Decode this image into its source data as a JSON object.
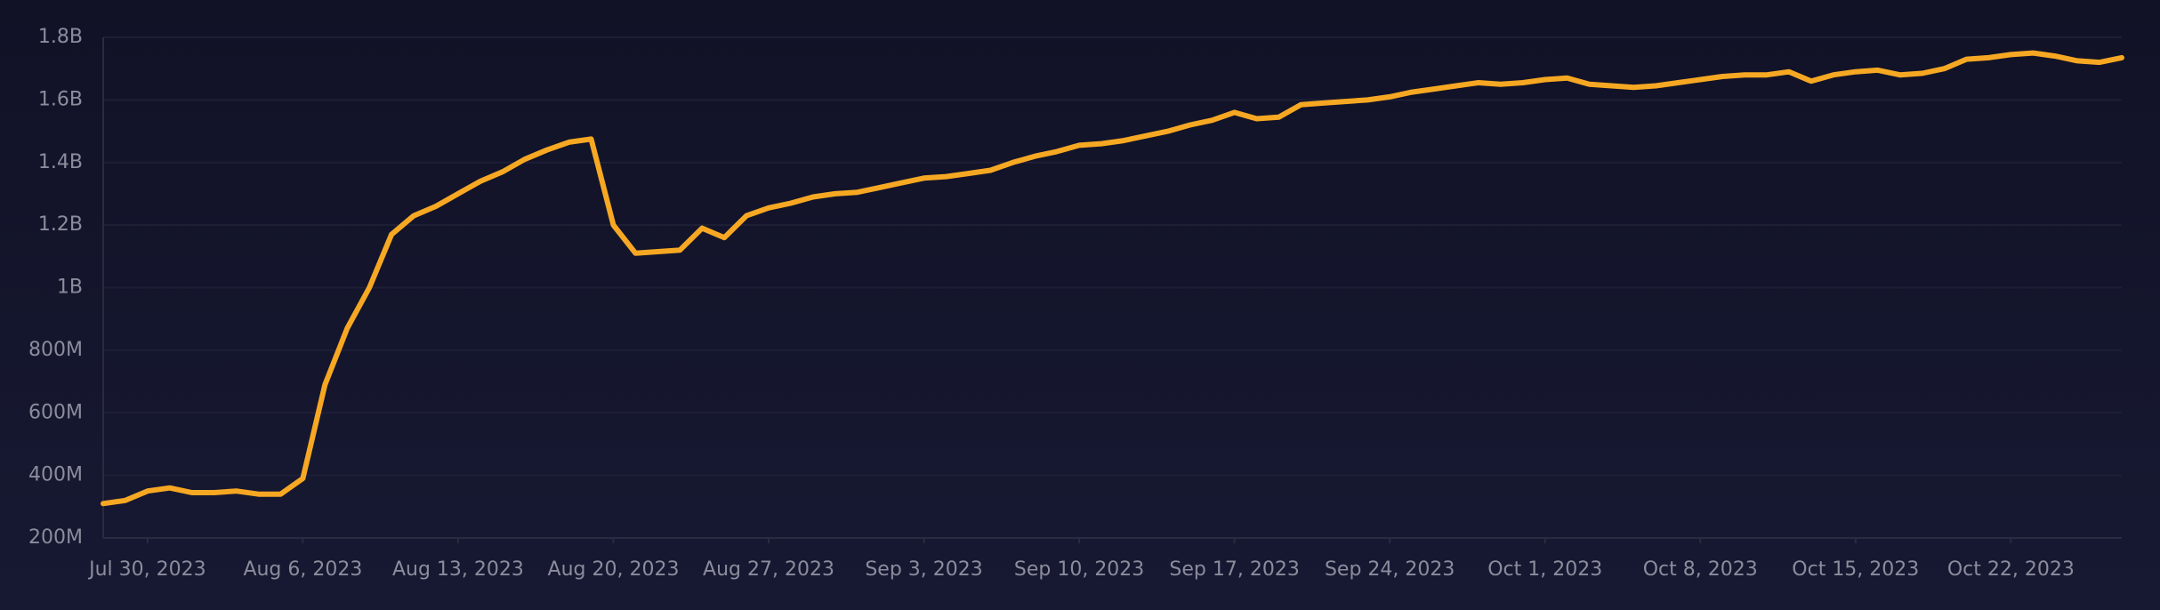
{
  "chart_data": {
    "type": "line",
    "x": [
      "2023-07-28",
      "2023-07-29",
      "2023-07-30",
      "2023-07-31",
      "2023-08-01",
      "2023-08-02",
      "2023-08-03",
      "2023-08-04",
      "2023-08-05",
      "2023-08-06",
      "2023-08-07",
      "2023-08-08",
      "2023-08-09",
      "2023-08-10",
      "2023-08-11",
      "2023-08-12",
      "2023-08-13",
      "2023-08-14",
      "2023-08-15",
      "2023-08-16",
      "2023-08-17",
      "2023-08-18",
      "2023-08-19",
      "2023-08-20",
      "2023-08-21",
      "2023-08-22",
      "2023-08-23",
      "2023-08-24",
      "2023-08-25",
      "2023-08-26",
      "2023-08-27",
      "2023-08-28",
      "2023-08-29",
      "2023-08-30",
      "2023-08-31",
      "2023-09-01",
      "2023-09-02",
      "2023-09-03",
      "2023-09-04",
      "2023-09-05",
      "2023-09-06",
      "2023-09-07",
      "2023-09-08",
      "2023-09-09",
      "2023-09-10",
      "2023-09-11",
      "2023-09-12",
      "2023-09-13",
      "2023-09-14",
      "2023-09-15",
      "2023-09-16",
      "2023-09-17",
      "2023-09-18",
      "2023-09-19",
      "2023-09-20",
      "2023-09-21",
      "2023-09-22",
      "2023-09-23",
      "2023-09-24",
      "2023-09-25",
      "2023-09-26",
      "2023-09-27",
      "2023-09-28",
      "2023-09-29",
      "2023-09-30",
      "2023-10-01",
      "2023-10-02",
      "2023-10-03",
      "2023-10-04",
      "2023-10-05",
      "2023-10-06",
      "2023-10-07",
      "2023-10-08",
      "2023-10-09",
      "2023-10-10",
      "2023-10-11",
      "2023-10-12",
      "2023-10-13",
      "2023-10-14",
      "2023-10-15",
      "2023-10-16",
      "2023-10-17",
      "2023-10-18",
      "2023-10-19",
      "2023-10-20",
      "2023-10-21",
      "2023-10-22",
      "2023-10-23",
      "2023-10-24",
      "2023-10-25",
      "2023-10-26",
      "2023-10-27"
    ],
    "series": [
      {
        "color": "#f7a823",
        "values": [
          310000000,
          320000000,
          350000000,
          360000000,
          345000000,
          345000000,
          350000000,
          340000000,
          340000000,
          390000000,
          690000000,
          870000000,
          1000000000,
          1170000000,
          1230000000,
          1260000000,
          1300000000,
          1340000000,
          1370000000,
          1410000000,
          1440000000,
          1465000000,
          1475000000,
          1200000000,
          1110000000,
          1115000000,
          1120000000,
          1190000000,
          1160000000,
          1230000000,
          1255000000,
          1270000000,
          1290000000,
          1300000000,
          1305000000,
          1320000000,
          1335000000,
          1350000000,
          1355000000,
          1365000000,
          1375000000,
          1400000000,
          1420000000,
          1435000000,
          1455000000,
          1460000000,
          1470000000,
          1485000000,
          1500000000,
          1520000000,
          1535000000,
          1560000000,
          1540000000,
          1545000000,
          1585000000,
          1590000000,
          1595000000,
          1600000000,
          1610000000,
          1625000000,
          1635000000,
          1645000000,
          1655000000,
          1650000000,
          1655000000,
          1665000000,
          1670000000,
          1650000000,
          1645000000,
          1640000000,
          1645000000,
          1655000000,
          1665000000,
          1675000000,
          1680000000,
          1680000000,
          1690000000,
          1660000000,
          1680000000,
          1690000000,
          1695000000,
          1680000000,
          1685000000,
          1700000000,
          1730000000,
          1735000000,
          1745000000,
          1750000000,
          1740000000,
          1725000000,
          1720000000,
          1735000000
        ]
      }
    ],
    "xlim": [
      "2023-07-28",
      "2023-10-27"
    ],
    "xticks": [
      {
        "value": "2023-07-30",
        "label": "Jul 30, 2023"
      },
      {
        "value": "2023-08-06",
        "label": "Aug 6, 2023"
      },
      {
        "value": "2023-08-13",
        "label": "Aug 13, 2023"
      },
      {
        "value": "2023-08-20",
        "label": "Aug 20, 2023"
      },
      {
        "value": "2023-08-27",
        "label": "Aug 27, 2023"
      },
      {
        "value": "2023-09-03",
        "label": "Sep 3, 2023"
      },
      {
        "value": "2023-09-10",
        "label": "Sep 10, 2023"
      },
      {
        "value": "2023-09-17",
        "label": "Sep 17, 2023"
      },
      {
        "value": "2023-09-24",
        "label": "Sep 24, 2023"
      },
      {
        "value": "2023-10-01",
        "label": "Oct 1, 2023"
      },
      {
        "value": "2023-10-08",
        "label": "Oct 8, 2023"
      },
      {
        "value": "2023-10-15",
        "label": "Oct 15, 2023"
      },
      {
        "value": "2023-10-22",
        "label": "Oct 22, 2023"
      }
    ],
    "ylim": [
      200000000,
      1800000000
    ],
    "yticks": [
      {
        "value": 200000000,
        "label": "200M"
      },
      {
        "value": 400000000,
        "label": "400M"
      },
      {
        "value": 600000000,
        "label": "600M"
      },
      {
        "value": 800000000,
        "label": "800M"
      },
      {
        "value": 1000000000,
        "label": "1B"
      },
      {
        "value": 1200000000,
        "label": "1.2B"
      },
      {
        "value": 1400000000,
        "label": "1.4B"
      },
      {
        "value": 1600000000,
        "label": "1.6B"
      },
      {
        "value": 1800000000,
        "label": "1.8B"
      }
    ],
    "grid": true
  }
}
